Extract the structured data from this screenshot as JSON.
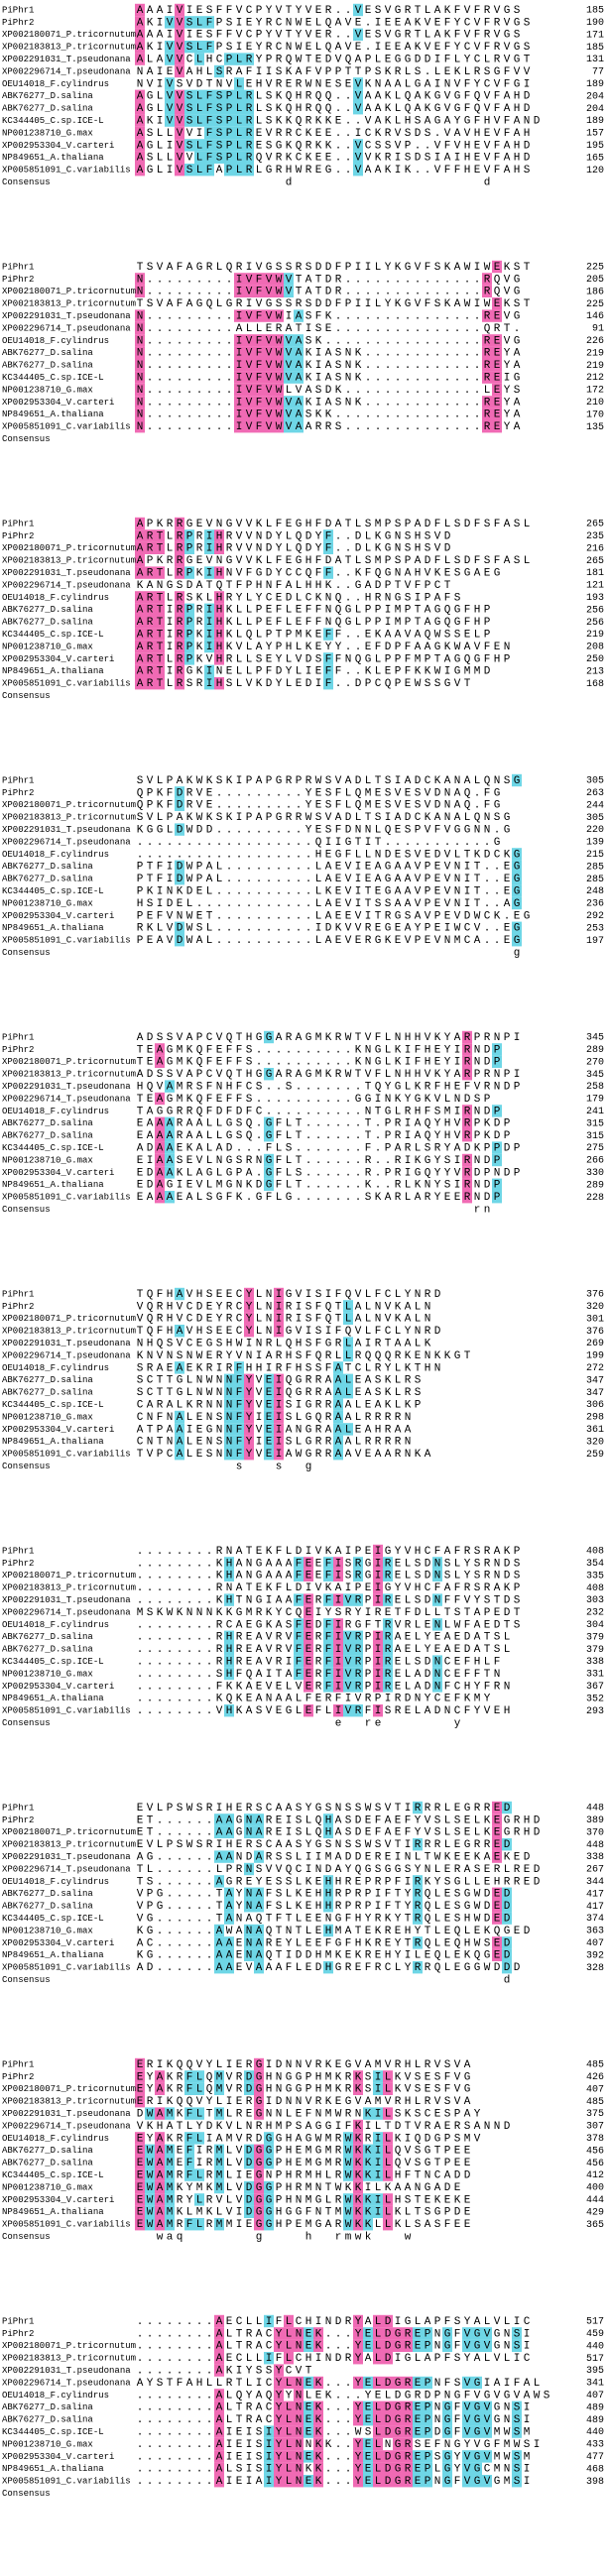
{
  "names": [
    "PiPhr1",
    "PiPhr2",
    "XP002180071_P.tricornutum",
    "XP002183813_P.tricornutum",
    "XP002291031_T.pseudonana",
    "XP002296714_T.pseudonana",
    "OEU14018_F.cylindrus",
    "ABK76277_D.salina",
    "ABK76277_D.salina",
    "KC344405_C.sp.ICE-L",
    "NP001238710_G.max",
    "XP002953304_V.carteri",
    "NP849651_A.thaliana",
    "XP005851091_C.variabilis"
  ],
  "consensus_label": "Consensus",
  "blocks": [
    {
      "seqs": [
        "AAAIVIESFFVCPYVTYVER..VESVGRTLAKFVFRVGS",
        "AKIVVSLFPSIEYRCNWELQAVE.IEEAKVEFYCVFRVGS",
        "AAAIVIESFFVCPYVTYVER..VESVGRTLAKFVFRVGS",
        "AKIVVSLFPSIEYRCNWELQAVE.IEEAKVEFYCVFRVGS",
        "ALAVVCLHCPLRYPRQWTEDVQAPLEGGDDIFLYCLRVGT",
        "NAIEVAHLSRAFIISKAFVPPTTPSKRLS.LEKLRSGFVV",
        "NVIVSVDTNVLEHVRERWNESEVKNAALGAINVFYCVFGI",
        "AGLVVSLFSPLRLSKQHRQQ..VAAKLQAKGVGFQVFAHD",
        "AGLVVSLFSPLRLSKQHRQQ..VAAKLQAKGVGFQVFAHD",
        "AKIVVSLFSPLRLSKKQRKKE..VAKLHSAGAYGFHVFAND",
        "ASLLVVIFSPLREVRRCKEE..ICKRVSDS.VAVHEVFAH",
        "AGLIVSLFSPLRESGKQRKK..VCSSVP..VFVHEVFAHD",
        "ASLLVVLFSPLRQVRKCKEE..VVKRISDSIAIHEVFAHD",
        "AGLIVSLFAPLRLGRHWREG..VAAKIK..VFFHEVFAHS"
      ],
      "ends": [
        185,
        190,
        171,
        185,
        131,
        77,
        189,
        204,
        204,
        189,
        157,
        195,
        165,
        120
      ],
      "consensus": "               d                   d"
    },
    {
      "seqs": [
        "TSVAFAGRLQRIVGSSRSDDFPIILYKGVFSKAWIWEKST",
        "N.........IVFVWVTATDR..............RQVG",
        "N.........IVFVWVTATDR..............RQVG",
        "TSVAFAGQLGRIVGSSRSDDFPIILYKGVFSKAWIWEKST",
        "N.........IVFVWIASFK...............REVG",
        "N.........ALLERATISE...............QRT.",
        "N.........IVFVWVASK................REVG",
        "N.........IVFVWVAKIASNK............REYA",
        "N.........IVFVWVAKIASNK............REYA",
        "N.........IVFVWVAKIASNK............REIG",
        "N.........IVFVWLVASDK..............LEYS",
        "N.........IVFVWVAKIASNK............REYA",
        "N.........IVFVWVASKK...............REYA",
        "N.........IVFVWVAARRS..............REYA"
      ],
      "ends": [
        225,
        205,
        186,
        225,
        146,
        91,
        226,
        219,
        219,
        212,
        172,
        210,
        170,
        135
      ]
    },
    {
      "seqs": [
        "APKRRGEVNGVVKLFEGHFDATLSMPSPADFLSDFSFASL",
        "ARTLRPRIHRVVNDYLQDYF..DLKGNSHSVD",
        "ARTLRPRIHRVVNDYLQDYF..DLKGNSHSVD",
        "APKRRGEVNGVVKLFEGHFDATLSMPSPADFLSDFSFASL",
        "ARTLRPKIHNVFGDYCCQFF..KFQGNAHVKESGAEG",
        "KANGSDATQTFPHNFALHHK..GADPTVFPCT",
        "ARTLRSKLHRYLYCEDLCKNQ..HRNGSIPAFS",
        "ARTIRPRIHKLLPEFLEFFNQGLPPIMPTAGQGFHP",
        "ARTIRPRIHKLLPEFLEFFNQGLPPIMPTAGQGFHP",
        "ARTIRPKIHKLQLPTPMKEFF..EKAAVAQWSSELP",
        "ARTIRPKIHKVLAYPHLKEYY..EFDPFAAGKWAVFEN",
        "ARTLRPKVHRLLSEYLVDSFFNQGLPPFMPTAGQGFHP",
        "ARTIRGKINELLPFDYLIEFF..KLEPFKKWIGMMD",
        "ARTLRSRIHSLVKDYLEDIF..DPCQPEWSSGVT"
      ],
      "ends": [
        265,
        235,
        216,
        265,
        181,
        121,
        193,
        256,
        256,
        219,
        208,
        250,
        213,
        168
      ]
    },
    {
      "seqs": [
        "SVLPAKWKSKIPAPGRPRWSVADLTSIADCKANALQNSG",
        "QPKFDRVE.........YESFLQMESVESVDNAQ.FG",
        "QPKFDRVE.........YESFLQMESVESVDNAQ.FG",
        "SVLPAKWKSKIPAPGRRWSVADLTSIADCKANALQNSG",
        "KGGLDWDD.........YESFDNNLQESPVFVGGNN.G",
        "..................QIIGTIT...........G",
        "..................HEGFLLNDESVEDVLTKDCKG",
        "PTFIDWPAL.........LAEVIEAGAAVPEVNIT..EG",
        "PTFIDWPAL.........LAEVIEAGAAVPEVNIT..EG",
        "PKINKDEL..........LKEVITEGAAVPEVNIT..EG",
        "HSIDEL............LAEVITSSAAVPEVNIT..AG",
        "PEFVNWET..........LAEEVITRGSAVPEVDWCK.EG",
        "RKLVDWSL..........IDKVVREGEAYPEIWCV..EG",
        "PEAVDWAL..........LAEVERGKEVPEVNMCA..EG"
      ],
      "ends": [
        305,
        263,
        244,
        305,
        220,
        139,
        215,
        285,
        285,
        248,
        236,
        292,
        253,
        197
      ],
      "consensus": "                                      g"
    },
    {
      "seqs": [
        "ADSSVAPCVQTHGGARAGMKRWTVFLNHHVKYARPRNPI",
        "TEAGMKQFEFFS..........KNGLKIFHEYIRNDP",
        "TEAGMKQFEFFS..........KNGLKIFHEYIRNDP",
        "ADSSVAPCVQTHGGARAGMKRWTVFLNHHVKYARPRNPI",
        "HQVAMRSFNHFCS..S.......TQYGLKRFHEFVRNDP",
        "TEAGMKQFEFFS..........GGINKYGKVLNDSP",
        "TAGGRRQFDFDFC..........NTGLRHFSMIRNDP",
        "EAAARAALLGSQ.GFLT......T.PRIAQYHVRPKDP",
        "EAAARAALLGSQ.GFLT......T.PRIAQYHVRPKDP",
        "ADAAEKALAD...FLS.......F.PARLSRYADKPPDP",
        "EIAASEVLNGSRNGFLT......R..RIKGYSIRNDP",
        "EDAAKLAGLGPA.GFLS......R.PRIGQYYVRDPNDP",
        "EDAGIEVLMGNKDGFLT......K..RLKNYSIRNDP",
        "EAAAEALSGFK.GFLG.......SKARLARYEERNDP"
      ],
      "ends": [
        345,
        289,
        270,
        345,
        258,
        179,
        241,
        315,
        315,
        275,
        266,
        330,
        289,
        228
      ],
      "consensus": "                                  rn"
    },
    {
      "seqs": [
        "TQFHAVHSEECYLNIGVISIFQVLFCLYNRD",
        "VQRHVCDEYRCYLNIRISFQTLALNVKALN",
        "VQRHVCDEYRCYLNIRISFQTLALNVKALN",
        "TQFHAVHSEECYLNIGVISIFQVLFCLYNRD",
        "NHQSVCEGSHWINRLQHSFGRLAIRTAALK",
        "KNVNSNWERYVNIARHSFQRLLRQQQRKENKKGT",
        "SRAEAEKRIRFHHIRFHSSFATCLRYLKTHN",
        "SCTTGLNWNNFYVEIQGRRAALEASKLRS",
        "SCTTGLNWNNFYVEIQGRRAALEASKLRS",
        "CARALKRNNNFYVEISIGRRAALEAKLKP",
        "CNFNALENSNFYIEISLGQRAALRRRRN",
        "ATPAAIEGNNFYVEIANGRAALEAHRAA",
        "CNTNALENSNFYIEISLGRRAALRRRRN",
        "TVPCALESNNFYVEIAWGRRAAVEAARNKA"
      ],
      "ends": [
        376,
        320,
        301,
        376,
        269,
        199,
        272,
        347,
        347,
        306,
        298,
        361,
        320,
        259
      ],
      "consensus": "          s   s  g"
    },
    {
      "seqs": [
        "........RNATEKFLDIVKAIPEIGYVHCFAFRSRAKP",
        "........KHANGAAAFEEFISRGIRELSDNSLYSRNDS",
        "........KHANGAAAFEEFISRGIRELSDNSLYSRNDS",
        "........RNATEKFLDIVKAIPEIGYVHCFAFRSRAKP",
        "........KHTNGIAAFERFIVRPIRELSDNFFVYSTDS",
        "MSKWKNNNKKGMRKYCQEIYSRYIRETFDLLTSTAPEDT",
        "........RCAEGKASFEDFIRGFTRVRLENLWFAEDTS",
        "........RHREAVRVFERFIVRPIRAELYEAEDATSL",
        "........RHREAVRVFERFIVRPIRAELYEAEDATSL",
        "........RHREAVRIFERFIVRPIRELSDNCEFHLF",
        "........SHFQAITAFERFIVRPIRELADNCEFFTN",
        "........FKKAEVELVERFIVRPIRELADNFCHYFRN",
        "........KQKEANAALFERFIVRPIRDNYCEFKMY",
        "........VHKASVEGLEFLIVRFISRELADNCFYVEH"
      ],
      "ends": [
        408,
        354,
        335,
        408,
        303,
        232,
        304,
        379,
        379,
        338,
        331,
        367,
        352,
        293
      ],
      "consensus": "                    e  re       y"
    },
    {
      "seqs": [
        "EVLPSWSRIHERSCAASYGSNSSWSVTIRRRLEGRRED",
        "ET......AAGNAREISLQHASDEFAEFYVSLSELKEGRHD",
        "ET......AAGNAREISLQHASDEFAEFYVSLSELKEGRHD",
        "EVLPSWSRIHERSCAASYGSNSSWSVTIRRRLEGRRED",
        "AG......AANDARSSLIIMADDEREINLTWKEEKAEKED",
        "TL......LPRNSVVQCINDAYQGSGGSYNLERASERLRED",
        "TS......AGREYESSLKEHHREPRPFIRKYSGLLEHRRED",
        "VPG.....TAYNAFSLKEHHRPRPIFTYRQLESGWDED",
        "VPG.....TAYNAFSLKEHHRPRPIFTYRQLESGWDED",
        "VG......TANAQTFTLEENGFHYRKYTRQLESHWDED",
        "KG......AWANAQTNTLEHMATEKREHYTLEQLEKQGED",
        "AC......AAENAREYLEEFGFHKREYTRQLEQHWSED",
        "KG......AAENAQTIDDHMKEKREHYILEQLEKQGED",
        "AD......AAEVAAAFLEDHGREFRCLYRRQLEGGWDDD"
      ],
      "ends": [
        448,
        389,
        370,
        448,
        338,
        267,
        344,
        417,
        417,
        374,
        363,
        407,
        392,
        328
      ],
      "consensus": "                                     d"
    },
    {
      "seqs": [
        "ERIKQQVYLIERGIDNNVRKEGVAMVRHLRVSVA",
        "EYAKRFLQMVRDGHNGGPHMKRKSILKVSESFVG",
        "EYAKRFLQMVRDGHNGGPHMKRKSILKVSESFVG",
        "ERIKQQVYLIERGIDNNVRKEGVAMVRHLRVSVA",
        "DWAMKFLTMLREGNNLEFNMWRNKILSKSCESPAY",
        "VKHATLYDKVLNRHMPSAGGIFKILTDTVRAERSANND",
        "EYAKRFLIAMVRDGGHAGWMRWKRILKIQDGPSMV",
        "EWAMEFIRMLVDGGPHEMGMRWKKILQVSGTPEE",
        "EWAMEFIRMLVDGGPHEMGMRWKKILQVSGTPEE",
        "EWAMRFLRMLIEGNPHRMHLRWKKILHFTNCADD",
        "EWAMKYMKMLVDGGPHRMNTWKKILKAANGADE",
        "EWAMRYLRVLVDGGPHNMGLRWKKILHSTEKEKE",
        "EWAMKLMKLVIDGGHGGFNTMWKKILKLTSGPDE",
        "EWAMRFLRMMIEGGHPEMGARWKKLLKLSASFEE"
      ],
      "ends": [
        485,
        426,
        407,
        485,
        375,
        307,
        378,
        456,
        456,
        412,
        400,
        444,
        429,
        365
      ],
      "consensus": "  waq       g    h  rmwk   w"
    },
    {
      "seqs": [
        "........AECLLIFLCHINDRYALDIGLAPFSYALVLIC",
        "........ALTRACYLNEK...YELDGREPNGFVGVGNSI",
        "........ALTRACYLNEK...YELDGREPNGFVGVGNSI",
        "........AECLLIFLCHINDRYALDIGLAPFSYALVLIC",
        "........AKIYSSYCVT",
        "AYSTFAHLLRTLICYLNEK...YELDGREPNFSVGIAIFAL",
        "........ALQYAQYYNLEK...YELDGRDPNGFVGVGVAWS",
        "........ALTRACYLNEK...YELDGREPNGFVGVGNSI",
        "........ALTRACYLNEK...YELDGREPNGFVGVGNSI",
        "........AIEISIYLNEK...WSLDGREPDGFVGVMWSM",
        "........AIEISIYLNNKK..YELNGRSEFNGYVGFMWSI",
        "........AIEISIYLNEK...YELDGREPSGYVGVMWSM",
        "........ALSISIYLNKK...YELDGREPLGYVGCMNSI",
        "........AIEIAIYLNEK...YELDGREPNGFVGVGMSI"
      ],
      "ends": [
        517,
        459,
        440,
        517,
        395,
        341,
        407,
        489,
        489,
        440,
        433,
        477,
        468,
        398
      ]
    }
  ]
}
